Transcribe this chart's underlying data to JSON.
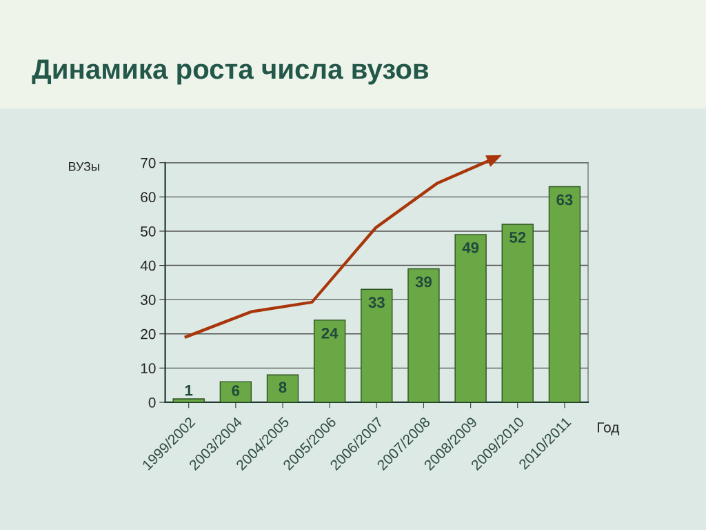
{
  "chart_data": {
    "type": "bar",
    "title": "Динамика роста числа вузов",
    "xlabel": "Год",
    "ylabel": "ВУЗы",
    "categories": [
      "1999/2002",
      "2003/2004",
      "2004/2005",
      "2005/2006",
      "2006/2007",
      "2007/2008",
      "2008/2009",
      "2009/2010",
      "2010/2011"
    ],
    "values": [
      1,
      6,
      8,
      24,
      33,
      39,
      49,
      52,
      63
    ],
    "color": "#6aa845",
    "ylim": [
      0,
      70
    ],
    "yticks": [
      0,
      10,
      20,
      30,
      40,
      50,
      60,
      70
    ],
    "grid": "y",
    "data_labels": true
  }
}
